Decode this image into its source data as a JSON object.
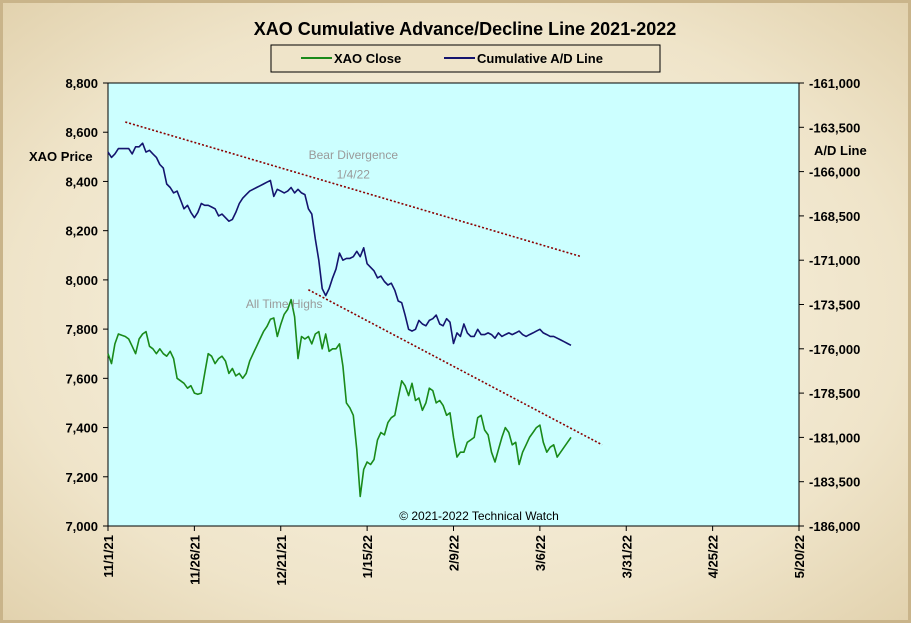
{
  "chart_data": {
    "type": "line",
    "title": "XAO Cumulative Advance/Decline Line 2021-2022",
    "credit": "© 2021-2022  Technical  Watch",
    "legend": {
      "placement": "top-center",
      "entries": [
        {
          "label": "XAO Close",
          "color": "#1a8a1a"
        },
        {
          "label": "Cumulative A/D Line",
          "color": "#14146e"
        }
      ]
    },
    "x_axis": {
      "ticks": [
        "11/1/21",
        "11/26/21",
        "12/21/21",
        "1/15/22",
        "2/9/22",
        "3/6/22",
        "3/31/22",
        "4/25/22",
        "5/20/22"
      ],
      "range_days": [
        0,
        200
      ]
    },
    "y_left": {
      "label": "XAO Price",
      "range": [
        7000,
        8800
      ],
      "ticks": [
        "7,000",
        "7,200",
        "7,400",
        "7,600",
        "7,800",
        "8,000",
        "8,200",
        "8,400",
        "8,600",
        "8,800"
      ]
    },
    "y_right": {
      "label": "A/D Line",
      "range": [
        -186000,
        -161000
      ],
      "ticks": [
        "-161,000",
        "-163,500",
        "-166,000",
        "-168,500",
        "-171,000",
        "-173,500",
        "-176,000",
        "-178,500",
        "-181,000",
        "-183,500",
        "-186,000"
      ]
    },
    "plot_background": "#ccffff",
    "grid": false,
    "series": [
      {
        "name": "XAO Close",
        "axis": "left",
        "color": "#1a8a1a",
        "x": [
          0,
          1,
          2,
          3,
          4,
          5,
          6,
          7,
          8,
          9,
          10,
          11,
          12,
          13,
          14,
          15,
          16,
          17,
          18,
          19,
          20,
          21,
          22,
          23,
          24,
          25,
          26,
          27,
          28,
          29,
          30,
          31,
          32,
          33,
          34,
          35,
          36,
          37,
          38,
          39,
          40,
          41,
          42,
          43,
          44,
          45,
          46,
          47,
          48,
          49,
          50,
          51,
          52,
          53,
          54,
          55,
          56,
          57,
          58,
          59,
          60,
          61,
          62,
          63,
          64,
          65,
          66,
          67,
          68,
          69,
          70,
          71,
          72,
          73,
          74,
          75,
          76,
          77,
          78,
          79,
          80,
          81,
          82,
          83,
          84,
          85,
          86,
          87,
          88,
          89,
          90,
          91,
          92,
          93,
          94,
          95,
          96,
          97,
          98,
          99,
          100,
          101,
          102,
          103,
          104,
          105,
          106,
          107,
          108,
          109,
          110,
          111,
          112,
          113,
          114,
          115,
          116,
          117,
          118,
          119,
          120,
          121,
          122,
          123,
          124,
          125,
          126,
          127,
          128,
          129,
          130,
          131,
          132,
          133,
          134
        ],
        "values": [
          7700,
          7660,
          7740,
          7780,
          7775,
          7770,
          7760,
          7730,
          7700,
          7760,
          7780,
          7790,
          7730,
          7720,
          7700,
          7720,
          7700,
          7690,
          7710,
          7680,
          7600,
          7590,
          7580,
          7560,
          7570,
          7540,
          7535,
          7540,
          7620,
          7700,
          7690,
          7660,
          7680,
          7690,
          7670,
          7620,
          7640,
          7610,
          7620,
          7600,
          7620,
          7670,
          7700,
          7730,
          7760,
          7790,
          7810,
          7840,
          7845,
          7770,
          7820,
          7860,
          7880,
          7920,
          7850,
          7680,
          7770,
          7760,
          7770,
          7740,
          7780,
          7790,
          7720,
          7780,
          7710,
          7720,
          7720,
          7740,
          7650,
          7500,
          7480,
          7450,
          7310,
          7120,
          7230,
          7260,
          7250,
          7270,
          7350,
          7380,
          7370,
          7420,
          7440,
          7450,
          7520,
          7590,
          7570,
          7530,
          7580,
          7510,
          7520,
          7470,
          7500,
          7560,
          7550,
          7500,
          7510,
          7490,
          7450,
          7460,
          7360,
          7280,
          7300,
          7300,
          7340,
          7350,
          7360,
          7440,
          7450,
          7390,
          7370,
          7300,
          7260,
          7310,
          7360,
          7400,
          7380,
          7330,
          7340,
          7250,
          7300,
          7330,
          7360,
          7380,
          7400,
          7410,
          7340,
          7300,
          7320,
          7330,
          7280,
          7300,
          7320,
          7340,
          7360
        ],
        "visible_points": 134
      },
      {
        "name": "Cumulative A/D Line",
        "axis": "right",
        "color": "#14146e",
        "x": [
          0,
          1,
          2,
          3,
          4,
          5,
          6,
          7,
          8,
          9,
          10,
          11,
          12,
          13,
          14,
          15,
          16,
          17,
          18,
          19,
          20,
          21,
          22,
          23,
          24,
          25,
          26,
          27,
          28,
          29,
          30,
          31,
          32,
          33,
          34,
          35,
          36,
          37,
          38,
          39,
          40,
          41,
          42,
          43,
          44,
          45,
          46,
          47,
          48,
          49,
          50,
          51,
          52,
          53,
          54,
          55,
          56,
          57,
          58,
          59,
          60,
          61,
          62,
          63,
          64,
          65,
          66,
          67,
          68,
          69,
          70,
          71,
          72,
          73,
          74,
          75,
          76,
          77,
          78,
          79,
          80,
          81,
          82,
          83,
          84,
          85,
          86,
          87,
          88,
          89,
          90,
          91,
          92,
          93,
          94,
          95,
          96,
          97,
          98,
          99,
          100,
          101,
          102,
          103,
          104,
          105,
          106,
          107,
          108,
          109,
          110,
          111,
          112,
          113,
          114,
          115,
          116,
          117,
          118,
          119,
          120,
          121,
          122,
          123,
          124,
          125,
          126,
          127,
          128,
          129,
          130,
          131,
          132,
          133,
          134
        ],
        "values": [
          -164900,
          -165200,
          -165000,
          -164700,
          -164700,
          -164700,
          -164700,
          -165000,
          -164600,
          -164600,
          -164400,
          -164900,
          -164800,
          -165000,
          -165200,
          -165600,
          -165800,
          -166700,
          -166900,
          -167200,
          -167100,
          -167600,
          -168100,
          -167900,
          -168300,
          -168600,
          -168300,
          -167800,
          -167900,
          -167900,
          -168000,
          -168100,
          -168500,
          -168400,
          -168600,
          -168800,
          -168700,
          -168300,
          -167800,
          -167500,
          -167300,
          -167100,
          -167000,
          -166900,
          -166800,
          -166700,
          -166600,
          -166500,
          -167400,
          -167000,
          -167100,
          -167200,
          -167100,
          -166900,
          -167200,
          -167000,
          -167200,
          -167300,
          -168100,
          -168400,
          -169800,
          -171000,
          -172600,
          -173000,
          -172600,
          -172000,
          -171500,
          -170600,
          -171000,
          -170900,
          -170900,
          -170800,
          -170500,
          -170800,
          -170300,
          -171200,
          -171400,
          -171600,
          -172000,
          -171900,
          -172200,
          -172400,
          -172300,
          -172700,
          -173300,
          -173400,
          -174100,
          -174900,
          -175000,
          -174900,
          -174400,
          -174600,
          -174700,
          -174400,
          -174300,
          -174100,
          -174600,
          -174700,
          -174300,
          -174500,
          -175700,
          -175100,
          -175300,
          -174600,
          -175100,
          -175300,
          -175300,
          -174900,
          -175200,
          -175200,
          -175100,
          -175200,
          -175400,
          -175100,
          -175300,
          -175200,
          -175100,
          -175200,
          -175100,
          -175000,
          -175200,
          -175300,
          -175200,
          -175100,
          -175000,
          -174900,
          -175100,
          -175200,
          -175300,
          -175300,
          -175400,
          -175500,
          -175600,
          -175700,
          -175800
        ],
        "visible_points": 134
      }
    ],
    "trendlines": [
      {
        "axis": "right",
        "from": [
          5,
          -163200
        ],
        "to": [
          137,
          -170800
        ],
        "color": "#8b0000",
        "style": "dotted"
      },
      {
        "axis": "left",
        "from": [
          58,
          7960
        ],
        "to": [
          143,
          7330
        ],
        "color": "#8b0000",
        "style": "dotted"
      }
    ],
    "annotations": [
      {
        "text": "Bear Divergence",
        "axis": "right",
        "x": 71,
        "y": -165300
      },
      {
        "text": "1/4/22",
        "axis": "right",
        "x": 71,
        "y": -166400
      },
      {
        "text": "All Time Highs",
        "axis": "left",
        "x": 51,
        "y": 7885
      }
    ]
  }
}
